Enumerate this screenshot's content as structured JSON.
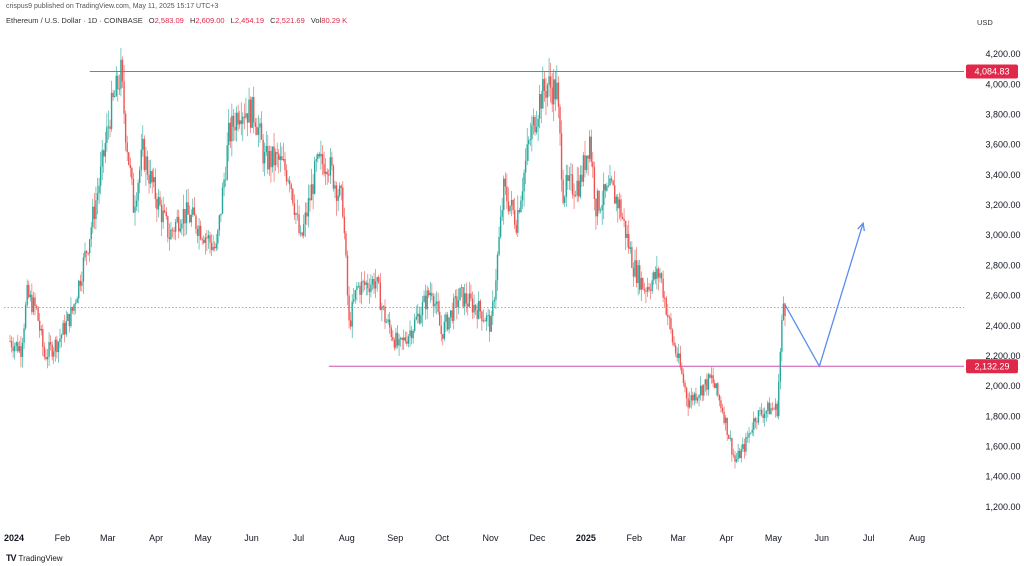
{
  "header": {
    "published": "crispus9 published on TradingView.com, May 11, 2025 15:17 UTC+3",
    "symbol": "Ethereum / U.S. Dollar · 1D · COINBASE",
    "ohlc": [
      {
        "k": "O",
        "v": "2,583.09"
      },
      {
        "k": "H",
        "v": "2,609.00"
      },
      {
        "k": "L",
        "v": "2,454.19"
      },
      {
        "k": "C",
        "v": "2,521.69"
      },
      {
        "k": "Vol",
        "v": "80.29 K"
      }
    ],
    "currency": "USD"
  },
  "footer": {
    "brand": "TradingView",
    "brand_mark": "TV"
  },
  "colors": {
    "up": "#26a69a",
    "down": "#ef5350",
    "level_line": "#d24fb0",
    "price_tag": "#e0294a",
    "projection": "#5b8def",
    "current_price_line": "#9aa0a6"
  },
  "chart_data": {
    "type": "candlestick",
    "title": "Ethereum / U.S. Dollar · 1D · COINBASE",
    "x_axis": {
      "start": "2024-01-01",
      "end": "2025-08-31",
      "labels": [
        {
          "text": "2024",
          "date": "2024-01-01",
          "bold": true
        },
        {
          "text": "Feb",
          "date": "2024-02-01"
        },
        {
          "text": "Mar",
          "date": "2024-03-01"
        },
        {
          "text": "Apr",
          "date": "2024-04-01"
        },
        {
          "text": "May",
          "date": "2024-05-01"
        },
        {
          "text": "Jun",
          "date": "2024-06-01"
        },
        {
          "text": "Jul",
          "date": "2024-07-01"
        },
        {
          "text": "Aug",
          "date": "2024-08-01"
        },
        {
          "text": "Sep",
          "date": "2024-09-01"
        },
        {
          "text": "Oct",
          "date": "2024-10-01"
        },
        {
          "text": "Nov",
          "date": "2024-11-01"
        },
        {
          "text": "Dec",
          "date": "2024-12-01"
        },
        {
          "text": "2025",
          "date": "2025-01-01",
          "bold": true
        },
        {
          "text": "Feb",
          "date": "2025-02-01"
        },
        {
          "text": "Mar",
          "date": "2025-03-01"
        },
        {
          "text": "Apr",
          "date": "2025-04-01"
        },
        {
          "text": "May",
          "date": "2025-05-01"
        },
        {
          "text": "Jun",
          "date": "2025-06-01"
        },
        {
          "text": "Jul",
          "date": "2025-07-01"
        },
        {
          "text": "Aug",
          "date": "2025-08-01"
        }
      ]
    },
    "y_axis": {
      "ylim": [
        1080,
        4360
      ],
      "ticks": [
        1200,
        1400,
        1600,
        1800,
        2000,
        2200,
        2400,
        2600,
        2800,
        3000,
        3200,
        3400,
        3600,
        3800,
        4000,
        4200
      ],
      "tick_labels": [
        "1,200.00",
        "1,400.00",
        "1,600.00",
        "1,800.00",
        "2,000.00",
        "2,200.00",
        "2,400.00",
        "2,600.00",
        "2,800.00",
        "3,000.00",
        "3,200.00",
        "3,400.00",
        "3,600.00",
        "3,800.00",
        "4,000.00",
        "4,200.00"
      ]
    },
    "price_path": [
      [
        "2024-01-01",
        2300
      ],
      [
        "2024-01-08",
        2250
      ],
      [
        "2024-01-12",
        2600
      ],
      [
        "2024-01-18",
        2500
      ],
      [
        "2024-01-23",
        2200
      ],
      [
        "2024-02-01",
        2300
      ],
      [
        "2024-02-10",
        2500
      ],
      [
        "2024-02-20",
        2950
      ],
      [
        "2024-02-28",
        3400
      ],
      [
        "2024-03-05",
        3800
      ],
      [
        "2024-03-12",
        4070
      ],
      [
        "2024-03-15",
        3700
      ],
      [
        "2024-03-20",
        3200
      ],
      [
        "2024-03-26",
        3550
      ],
      [
        "2024-04-02",
        3300
      ],
      [
        "2024-04-12",
        3000
      ],
      [
        "2024-04-20",
        3150
      ],
      [
        "2024-04-28",
        3100
      ],
      [
        "2024-05-05",
        3000
      ],
      [
        "2024-05-12",
        2900
      ],
      [
        "2024-05-20",
        3650
      ],
      [
        "2024-05-27",
        3850
      ],
      [
        "2024-06-06",
        3800
      ],
      [
        "2024-06-12",
        3500
      ],
      [
        "2024-06-20",
        3500
      ],
      [
        "2024-06-28",
        3400
      ],
      [
        "2024-07-05",
        2950
      ],
      [
        "2024-07-15",
        3450
      ],
      [
        "2024-07-22",
        3500
      ],
      [
        "2024-08-01",
        3200
      ],
      [
        "2024-08-05",
        2400
      ],
      [
        "2024-08-10",
        2650
      ],
      [
        "2024-08-22",
        2700
      ],
      [
        "2024-08-28",
        2450
      ],
      [
        "2024-09-06",
        2250
      ],
      [
        "2024-09-15",
        2400
      ],
      [
        "2024-09-27",
        2650
      ],
      [
        "2024-10-03",
        2350
      ],
      [
        "2024-10-15",
        2600
      ],
      [
        "2024-10-28",
        2500
      ],
      [
        "2024-11-04",
        2400
      ],
      [
        "2024-11-12",
        3300
      ],
      [
        "2024-11-20",
        3100
      ],
      [
        "2024-11-28",
        3600
      ],
      [
        "2024-12-05",
        3900
      ],
      [
        "2024-12-10",
        4000
      ],
      [
        "2024-12-16",
        3950
      ],
      [
        "2024-12-20",
        3300
      ],
      [
        "2024-12-31",
        3350
      ],
      [
        "2025-01-06",
        3650
      ],
      [
        "2025-01-10",
        3200
      ],
      [
        "2025-01-20",
        3300
      ],
      [
        "2025-01-25",
        3200
      ],
      [
        "2025-02-03",
        2800
      ],
      [
        "2025-02-10",
        2650
      ],
      [
        "2025-02-20",
        2750
      ],
      [
        "2025-02-28",
        2300
      ],
      [
        "2025-03-03",
        2200
      ],
      [
        "2025-03-10",
        1900
      ],
      [
        "2025-03-20",
        2000
      ],
      [
        "2025-03-25",
        2050
      ],
      [
        "2025-04-01",
        1850
      ],
      [
        "2025-04-09",
        1500
      ],
      [
        "2025-04-15",
        1600
      ],
      [
        "2025-04-22",
        1800
      ],
      [
        "2025-05-01",
        1850
      ],
      [
        "2025-05-06",
        1850
      ],
      [
        "2025-05-09",
        2400
      ],
      [
        "2025-05-10",
        2550
      ],
      [
        "2025-05-11",
        2522
      ]
    ],
    "levels": [
      {
        "value": 4084.83,
        "label": "4,084.83",
        "from": "2024-03-01"
      },
      {
        "value": 2132.29,
        "label": "2,132.29",
        "from": "2024-08-01"
      }
    ],
    "current_price": 2521.69,
    "projection_path": [
      [
        "2025-05-11",
        2540
      ],
      [
        "2025-06-02",
        2132.29
      ],
      [
        "2025-06-30",
        3080
      ]
    ]
  }
}
